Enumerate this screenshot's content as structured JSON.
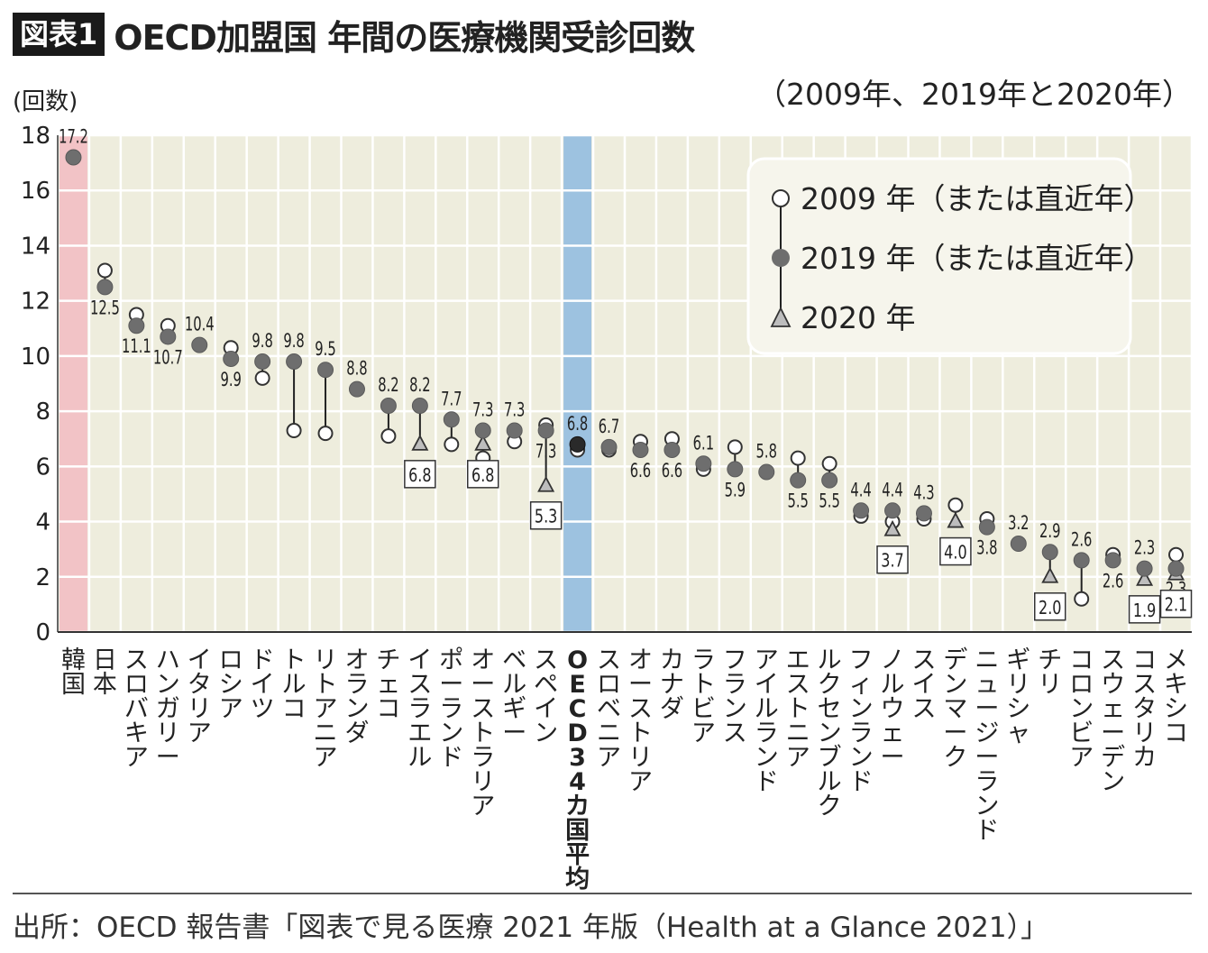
{
  "header": {
    "fig_label": "図表1",
    "title": "OECD加盟国 年間の医療機関受診回数",
    "years_note": "（2009年、2019年と2020年）"
  },
  "chart_data": {
    "type": "scatter",
    "title": "OECD加盟国 年間の医療機関受診回数",
    "ylabel": "(回数)",
    "ylim": [
      0,
      18
    ],
    "yticks": [
      0,
      2,
      4,
      6,
      8,
      10,
      12,
      14,
      16,
      18
    ],
    "grid": true,
    "legend_position": "top-right",
    "legend": [
      {
        "key": "v2009",
        "label": "2009 年（または直近年）",
        "marker": "open-circle"
      },
      {
        "key": "v2019",
        "label": "2019 年（または直近年）",
        "marker": "filled-circle"
      },
      {
        "key": "v2020",
        "label": "2020 年",
        "marker": "triangle"
      }
    ],
    "highlight": {
      "韓国": "#f2c3c6",
      "OECD34カ国平均": "#9dc2e0"
    },
    "categories": [
      {
        "name": "韓国",
        "v2009": null,
        "v2019": 17.2,
        "v2020": null
      },
      {
        "name": "日本",
        "v2009": 13.1,
        "v2019": 12.5,
        "v2020": null
      },
      {
        "name": "スロバキア",
        "v2009": 11.5,
        "v2019": 11.1,
        "v2020": null
      },
      {
        "name": "ハンガリー",
        "v2009": 11.1,
        "v2019": 10.7,
        "v2020": null
      },
      {
        "name": "イタリア",
        "v2009": null,
        "v2019": 10.4,
        "v2020": null
      },
      {
        "name": "ロシア",
        "v2009": 10.3,
        "v2019": 9.9,
        "v2020": null
      },
      {
        "name": "ドイツ",
        "v2009": 9.2,
        "v2019": 9.8,
        "v2020": null
      },
      {
        "name": "トルコ",
        "v2009": 7.3,
        "v2019": 9.8,
        "v2020": null
      },
      {
        "name": "リトアニア",
        "v2009": 7.2,
        "v2019": 9.5,
        "v2020": null
      },
      {
        "name": "オランダ",
        "v2009": null,
        "v2019": 8.8,
        "v2020": null
      },
      {
        "name": "チェコ",
        "v2009": 7.1,
        "v2019": 8.2,
        "v2020": null
      },
      {
        "name": "イスラエル",
        "v2009": null,
        "v2019": 8.2,
        "v2020": 6.8
      },
      {
        "name": "ポーランド",
        "v2009": 6.8,
        "v2019": 7.7,
        "v2020": null
      },
      {
        "name": "オーストラリア",
        "v2009": 6.3,
        "v2019": 7.3,
        "v2020": 6.8
      },
      {
        "name": "ベルギー",
        "v2009": 6.9,
        "v2019": 7.3,
        "v2020": null
      },
      {
        "name": "スペイン",
        "v2009": 7.5,
        "v2019": 7.3,
        "v2020": 5.3
      },
      {
        "name": "OECD34カ国平均",
        "v2009": 6.6,
        "v2019": 6.8,
        "v2020": null
      },
      {
        "name": "スロベニア",
        "v2009": 6.6,
        "v2019": 6.7,
        "v2020": null
      },
      {
        "name": "オーストリア",
        "v2009": 6.9,
        "v2019": 6.6,
        "v2020": null
      },
      {
        "name": "カナダ",
        "v2009": 7.0,
        "v2019": 6.6,
        "v2020": null
      },
      {
        "name": "ラトビア",
        "v2009": 5.9,
        "v2019": 6.1,
        "v2020": null
      },
      {
        "name": "フランス",
        "v2009": 6.7,
        "v2019": 5.9,
        "v2020": null
      },
      {
        "name": "アイルランド",
        "v2009": null,
        "v2019": 5.8,
        "v2020": null
      },
      {
        "name": "エストニア",
        "v2009": 6.3,
        "v2019": 5.5,
        "v2020": null
      },
      {
        "name": "ルクセンブルク",
        "v2009": 6.1,
        "v2019": 5.5,
        "v2020": null
      },
      {
        "name": "フィンランド",
        "v2009": 4.2,
        "v2019": 4.4,
        "v2020": null
      },
      {
        "name": "ノルウェー",
        "v2009": 4.0,
        "v2019": 4.4,
        "v2020": 3.7
      },
      {
        "name": "スイス",
        "v2009": 4.1,
        "v2019": 4.3,
        "v2020": null
      },
      {
        "name": "デンマーク",
        "v2009": 4.6,
        "v2019": null,
        "v2020": 4.0
      },
      {
        "name": "ニュージーランド",
        "v2009": 4.1,
        "v2019": 3.8,
        "v2020": null
      },
      {
        "name": "ギリシャ",
        "v2009": null,
        "v2019": 3.2,
        "v2020": null
      },
      {
        "name": "チリ",
        "v2009": null,
        "v2019": 2.9,
        "v2020": 2.0
      },
      {
        "name": "コロンビア",
        "v2009": 1.2,
        "v2019": 2.6,
        "v2020": null
      },
      {
        "name": "スウェーデン",
        "v2009": 2.8,
        "v2019": 2.6,
        "v2020": null
      },
      {
        "name": "コスタリカ",
        "v2009": null,
        "v2019": 2.3,
        "v2020": 1.9
      },
      {
        "name": "メキシコ",
        "v2009": 2.8,
        "v2019": 2.3,
        "v2020": 2.1
      }
    ],
    "data_labels": [
      {
        "cat": "韓国",
        "text": "17.2"
      },
      {
        "cat": "日本",
        "text": "12.5"
      },
      {
        "cat": "スロバキア",
        "text": "11.1"
      },
      {
        "cat": "ハンガリー",
        "text": "10.7"
      },
      {
        "cat": "イタリア",
        "text": "10.4"
      },
      {
        "cat": "ロシア",
        "text": "9.9"
      },
      {
        "cat": "ドイツ",
        "text": "9.8"
      },
      {
        "cat": "トルコ",
        "text": "9.8"
      },
      {
        "cat": "リトアニア",
        "text": "9.5"
      },
      {
        "cat": "オランダ",
        "text": "8.8"
      },
      {
        "cat": "チェコ",
        "text": "8.2"
      },
      {
        "cat": "イスラエル",
        "text": "8.2"
      },
      {
        "cat": "ポーランド",
        "text": "7.7"
      },
      {
        "cat": "オーストラリア",
        "text": "7.3"
      },
      {
        "cat": "ベルギー",
        "text": "7.3"
      },
      {
        "cat": "スペイン",
        "text": "7.3"
      },
      {
        "cat": "OECD34カ国平均",
        "text": "6.8"
      },
      {
        "cat": "スロベニア",
        "text": "6.7"
      },
      {
        "cat": "オーストリア",
        "text": "6.6"
      },
      {
        "cat": "カナダ",
        "text": "6.6"
      },
      {
        "cat": "ラトビア",
        "text": "6.1"
      },
      {
        "cat": "フランス",
        "text": "5.9"
      },
      {
        "cat": "アイルランド",
        "text": "5.8"
      },
      {
        "cat": "エストニア",
        "text": "5.5"
      },
      {
        "cat": "ルクセンブルク",
        "text": "5.5"
      },
      {
        "cat": "フィンランド",
        "text": "4.4"
      },
      {
        "cat": "ノルウェー",
        "text": "4.4"
      },
      {
        "cat": "スイス",
        "text": "4.3"
      },
      {
        "cat": "ニュージーランド",
        "text": "3.8"
      },
      {
        "cat": "ギリシャ",
        "text": "3.2"
      },
      {
        "cat": "チリ",
        "text": "2.9"
      },
      {
        "cat": "コロンビア",
        "text": "2.6"
      },
      {
        "cat": "スウェーデン",
        "text": "2.6"
      },
      {
        "cat": "コスタリカ",
        "text": "2.3"
      },
      {
        "cat": "メキシコ",
        "text": "2.3"
      }
    ],
    "boxed_labels": [
      {
        "cat": "イスラエル",
        "text": "6.8"
      },
      {
        "cat": "オーストラリア",
        "text": "6.8"
      },
      {
        "cat": "スペイン",
        "text": "5.3"
      },
      {
        "cat": "ノルウェー",
        "text": "3.7"
      },
      {
        "cat": "デンマーク",
        "text": "4.0"
      },
      {
        "cat": "チリ",
        "text": "2.0"
      },
      {
        "cat": "コスタリカ",
        "text": "1.9"
      },
      {
        "cat": "メキシコ",
        "text": "2.1"
      }
    ]
  },
  "source": "出所：OECD 報告書「図表で見る医療 2021 年版（Health at a Glance 2021）」"
}
